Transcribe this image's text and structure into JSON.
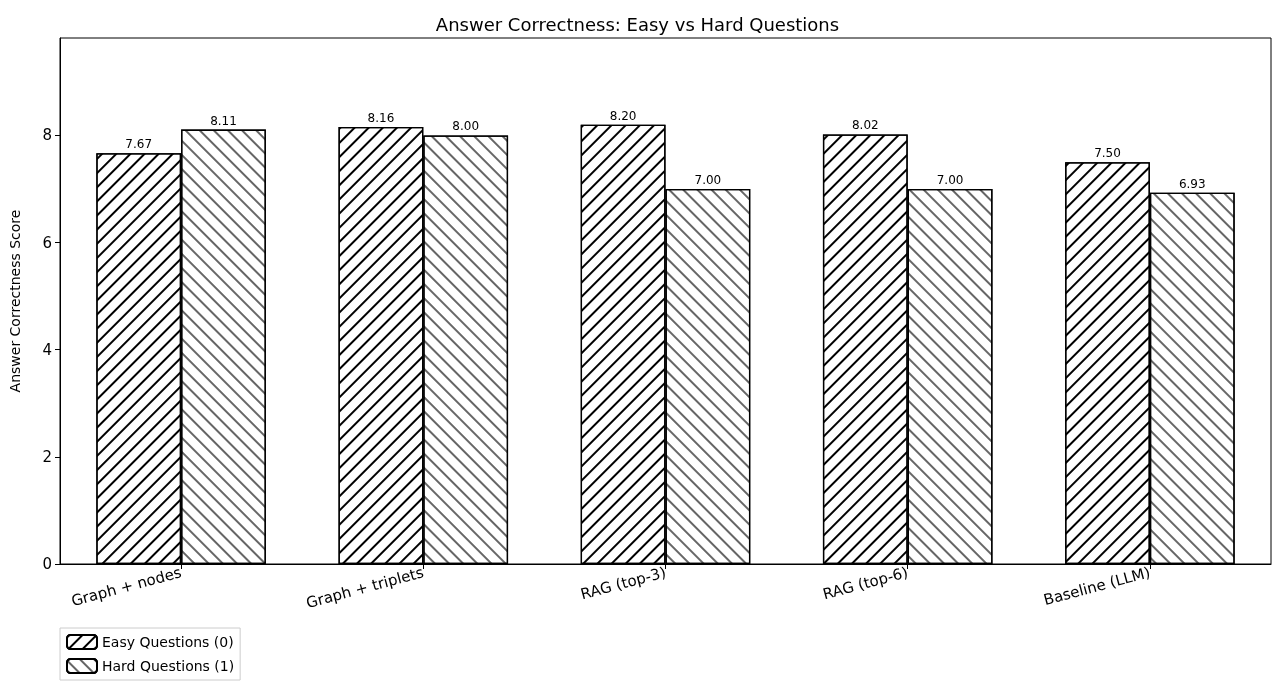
{
  "chart_data": {
    "type": "bar",
    "title": "Answer Correctness: Easy vs Hard Questions",
    "ylabel": "Answer Correctness Score",
    "categories": [
      "Graph + nodes",
      "Graph + triplets",
      "RAG (top-3)",
      "RAG (top-6)",
      "Baseline (LLM)"
    ],
    "series": [
      {
        "name": "Easy Questions (0)",
        "color": "#ffffff",
        "values": [
          7.67,
          8.16,
          8.2,
          8.02,
          7.5
        ],
        "value_labels": [
          "7.67",
          "8.16",
          "8.20",
          "8.02",
          "7.50"
        ]
      },
      {
        "name": "Hard Questions (1)",
        "color": "#ffffff",
        "values": [
          8.11,
          8,
          7,
          7,
          6.93
        ],
        "value_labels": [
          "8.11",
          "8.00",
          "7.00",
          "7.00",
          "6.93"
        ]
      }
    ],
    "ylim": [
      0,
      9.82
    ],
    "yticks": [
      0,
      2,
      4,
      6,
      8
    ],
    "grid": false,
    "legend": "bottom left"
  }
}
